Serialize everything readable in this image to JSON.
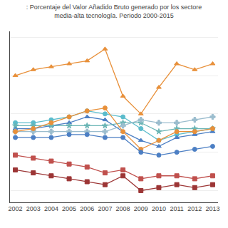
{
  "chart_data": {
    "type": "line",
    "title": ": Porcentaje del Valor Añadido Bruto generado por los sectore\nmedia-alta tecnología. Periodo 2000-2015",
    "x": [
      2002,
      2003,
      2004,
      2005,
      2006,
      2007,
      2008,
      2009,
      2010,
      2011,
      2012,
      2013
    ],
    "series": [
      {
        "color": "#E8903A",
        "marker": "triangle-up",
        "values": [
          30.5,
          31.5,
          32,
          32.5,
          33,
          35,
          27,
          24,
          28.5,
          32.5,
          31.5,
          32.5
        ]
      },
      {
        "color": "#5BBCCC",
        "marker": "circle",
        "values": [
          22.5,
          22.5,
          23,
          23.5,
          24.5,
          24,
          23.5,
          21.5,
          19.5,
          20.5,
          21,
          21.5
        ]
      },
      {
        "color": "#4C7FC4",
        "marker": "triangle-up",
        "values": [
          21.5,
          21.5,
          22,
          22.5,
          23.5,
          23,
          21,
          19.5,
          18.5,
          20,
          20.5,
          21
        ]
      },
      {
        "color": "#6AB5B5",
        "marker": "star",
        "values": [
          22,
          22,
          22,
          22,
          22,
          22,
          22.5,
          22.5,
          21,
          21.5,
          21.5,
          21.5
        ]
      },
      {
        "color": "#9BBDCE",
        "marker": "cross",
        "values": [
          21,
          21,
          21,
          21,
          21,
          21,
          22,
          23,
          22.5,
          22.5,
          23,
          23.5
        ]
      },
      {
        "color": "#E8903A",
        "marker": "circle",
        "values": [
          21,
          21.5,
          22.5,
          23.5,
          24.5,
          25,
          21,
          18,
          19.5,
          21,
          21,
          21.5
        ]
      },
      {
        "color": "#4C7FC4",
        "marker": "circle",
        "values": [
          20,
          20,
          20,
          20.5,
          20.5,
          20,
          20,
          17.5,
          17,
          17.5,
          18,
          18.5
        ]
      },
      {
        "color": "#C0504D",
        "marker": "square",
        "values": [
          17,
          16.5,
          16,
          15.5,
          15,
          14,
          14.5,
          13,
          13.5,
          13.5,
          13,
          13.5
        ]
      },
      {
        "color": "#9C3535",
        "marker": "square",
        "values": [
          14.5,
          14,
          13.5,
          13,
          12.5,
          12,
          13.5,
          11,
          11.5,
          12,
          11.5,
          12
        ]
      }
    ],
    "xlim": [
      2001.7,
      2013.3
    ],
    "xticks": [
      2002,
      2003,
      2004,
      2005,
      2006,
      2007,
      2008,
      2009,
      2010,
      2011,
      2012,
      2013
    ],
    "ylim": [
      9,
      38
    ],
    "yticks": [
      11,
      17.5,
      24,
      30.5,
      37
    ],
    "grid": true,
    "tick_labels": "x"
  }
}
